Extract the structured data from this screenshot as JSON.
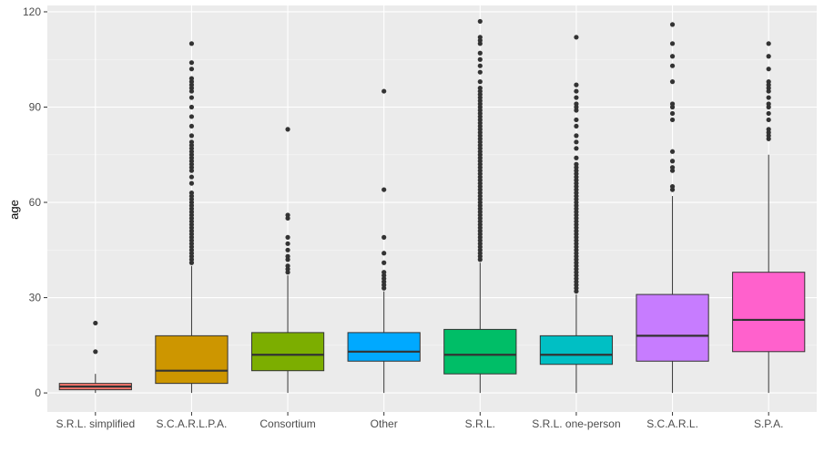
{
  "chart_data": {
    "type": "boxplot",
    "title": "",
    "xlabel": "",
    "ylabel": "age",
    "ylim": [
      -6,
      122
    ],
    "yticks": [
      0,
      30,
      60,
      90,
      120
    ],
    "grid": true,
    "legend": "none",
    "categories": [
      "S.R.L. simplified",
      "S.C.A.R.L.P.A.",
      "Consortium",
      "Other",
      "S.R.L.",
      "S.R.L. one-person",
      "S.C.A.R.L.",
      "S.P.A."
    ],
    "boxes": [
      {
        "category": "S.R.L. simplified",
        "color": "#F8766D",
        "min": 0,
        "q1": 1,
        "median": 2,
        "q3": 3,
        "max": 6,
        "outliers": [
          13,
          22
        ]
      },
      {
        "category": "S.C.A.R.L.P.A.",
        "color": "#CD9600",
        "min": 0,
        "q1": 3,
        "median": 7,
        "q3": 18,
        "max": 40,
        "outliers": [
          41,
          42,
          43,
          44,
          45,
          46,
          47,
          48,
          49,
          50,
          51,
          52,
          53,
          54,
          55,
          56,
          57,
          58,
          59,
          60,
          61,
          62,
          63,
          66,
          68,
          70,
          71,
          72,
          73,
          74,
          75,
          76,
          77,
          78,
          79,
          81,
          84,
          87,
          90,
          93,
          95,
          96,
          97,
          98,
          99,
          102,
          104,
          110
        ]
      },
      {
        "category": "Consortium",
        "color": "#7CAE00",
        "min": 0,
        "q1": 7,
        "median": 12,
        "q3": 19,
        "max": 37,
        "outliers": [
          38,
          39,
          40,
          42,
          43,
          45,
          47,
          49,
          55,
          56,
          83
        ]
      },
      {
        "category": "Other",
        "color": "#00A9FF",
        "min": 0,
        "q1": 10,
        "median": 13,
        "q3": 19,
        "max": 32,
        "outliers": [
          33,
          34,
          35,
          36,
          37,
          38,
          41,
          44,
          49,
          64,
          95
        ]
      },
      {
        "category": "S.R.L.",
        "color": "#00BE67",
        "min": 0,
        "q1": 6,
        "median": 12,
        "q3": 20,
        "max": 41,
        "outliers": [
          42,
          43,
          44,
          45,
          46,
          47,
          48,
          49,
          50,
          51,
          52,
          53,
          54,
          55,
          56,
          57,
          58,
          59,
          60,
          61,
          62,
          63,
          64,
          65,
          66,
          67,
          68,
          69,
          70,
          71,
          72,
          73,
          74,
          75,
          76,
          77,
          78,
          79,
          80,
          81,
          82,
          83,
          84,
          85,
          86,
          87,
          88,
          89,
          90,
          91,
          92,
          93,
          94,
          95,
          96,
          98,
          101,
          103,
          105,
          107,
          110,
          111,
          112,
          117
        ]
      },
      {
        "category": "S.R.L. one-person",
        "color": "#00BFC4",
        "min": 0,
        "q1": 9,
        "median": 12,
        "q3": 18,
        "max": 31,
        "outliers": [
          32,
          33,
          34,
          35,
          36,
          37,
          38,
          39,
          40,
          41,
          42,
          43,
          44,
          45,
          46,
          47,
          48,
          49,
          50,
          51,
          52,
          53,
          54,
          55,
          56,
          57,
          58,
          59,
          60,
          61,
          62,
          63,
          64,
          65,
          66,
          67,
          68,
          69,
          70,
          71,
          72,
          74,
          77,
          79,
          81,
          84,
          86,
          89,
          90,
          91,
          93,
          95,
          97,
          112
        ]
      },
      {
        "category": "S.C.A.R.L.",
        "color": "#C77CFF",
        "min": 0,
        "q1": 10,
        "median": 18,
        "q3": 31,
        "max": 62,
        "outliers": [
          64,
          65,
          70,
          71,
          73,
          76,
          86,
          88,
          90,
          91,
          98,
          103,
          106,
          110,
          116
        ]
      },
      {
        "category": "S.P.A.",
        "color": "#FF61CC",
        "min": 0,
        "q1": 13,
        "median": 23,
        "q3": 38,
        "max": 75,
        "outliers": [
          80,
          81,
          82,
          83,
          86,
          88,
          90,
          91,
          93,
          95,
          96,
          97,
          98,
          102,
          106,
          110
        ]
      }
    ]
  }
}
